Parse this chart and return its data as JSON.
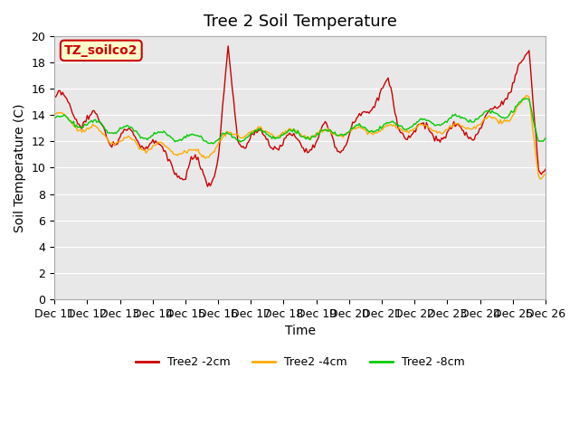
{
  "title": "Tree 2 Soil Temperature",
  "ylabel": "Soil Temperature (C)",
  "xlabel": "Time",
  "annotation": "TZ_soilco2",
  "ylim": [
    0,
    20
  ],
  "yticks": [
    0,
    2,
    4,
    6,
    8,
    10,
    12,
    14,
    16,
    18,
    20
  ],
  "xtick_positions": [
    0,
    1,
    2,
    3,
    4,
    5,
    6,
    7,
    8,
    9,
    10,
    11,
    12,
    13,
    14,
    15
  ],
  "xtick_labels": [
    "Dec 11",
    "Dec 12",
    "Dec 13",
    "Dec 14",
    "Dec 15",
    "Dec 16",
    "Dec 17",
    "Dec 18",
    "Dec 19",
    "Dec 20",
    "Dec 21",
    "Dec 22",
    "Dec 23",
    "Dec 24",
    "Dec 25",
    "Dec 26"
  ],
  "color_2cm": "#cc0000",
  "color_4cm": "#ffaa00",
  "color_8cm": "#00cc00",
  "legend_labels": [
    "Tree2 -2cm",
    "Tree2 -4cm",
    "Tree2 -8cm"
  ],
  "bg_color": "#e8e8e8",
  "title_fontsize": 13,
  "axis_label_fontsize": 10,
  "tick_fontsize": 9
}
